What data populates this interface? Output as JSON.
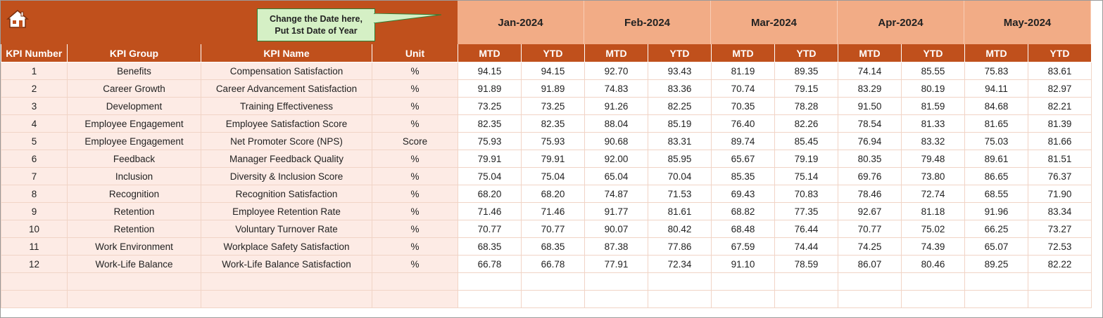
{
  "header": {
    "home_icon": "home-icon",
    "callout_line1": "Change the Date here,",
    "callout_line2": "Put 1st Date of Year",
    "months": [
      "Jan-2024",
      "Feb-2024",
      "Mar-2024",
      "Apr-2024",
      "May-2024"
    ]
  },
  "columns": {
    "kpi_number": "KPI Number",
    "kpi_group": "KPI Group",
    "kpi_name": "KPI Name",
    "unit": "Unit",
    "mtd": "MTD",
    "ytd": "YTD"
  },
  "rows": [
    {
      "num": "1",
      "group": "Benefits",
      "name": "Compensation Satisfaction",
      "unit": "%",
      "values": [
        "94.15",
        "94.15",
        "92.70",
        "93.43",
        "81.19",
        "89.35",
        "74.14",
        "85.55",
        "75.83",
        "83.61"
      ]
    },
    {
      "num": "2",
      "group": "Career Growth",
      "name": "Career Advancement Satisfaction",
      "unit": "%",
      "values": [
        "91.89",
        "91.89",
        "74.83",
        "83.36",
        "70.74",
        "79.15",
        "83.29",
        "80.19",
        "94.11",
        "82.97"
      ]
    },
    {
      "num": "3",
      "group": "Development",
      "name": "Training Effectiveness",
      "unit": "%",
      "values": [
        "73.25",
        "73.25",
        "91.26",
        "82.25",
        "70.35",
        "78.28",
        "91.50",
        "81.59",
        "84.68",
        "82.21"
      ]
    },
    {
      "num": "4",
      "group": "Employee Engagement",
      "name": "Employee Satisfaction Score",
      "unit": "%",
      "values": [
        "82.35",
        "82.35",
        "88.04",
        "85.19",
        "76.40",
        "82.26",
        "78.54",
        "81.33",
        "81.65",
        "81.39"
      ]
    },
    {
      "num": "5",
      "group": "Employee Engagement",
      "name": "Net Promoter Score (NPS)",
      "unit": "Score",
      "values": [
        "75.93",
        "75.93",
        "90.68",
        "83.31",
        "89.74",
        "85.45",
        "76.94",
        "83.32",
        "75.03",
        "81.66"
      ]
    },
    {
      "num": "6",
      "group": "Feedback",
      "name": "Manager Feedback Quality",
      "unit": "%",
      "values": [
        "79.91",
        "79.91",
        "92.00",
        "85.95",
        "65.67",
        "79.19",
        "80.35",
        "79.48",
        "89.61",
        "81.51"
      ]
    },
    {
      "num": "7",
      "group": "Inclusion",
      "name": "Diversity & Inclusion Score",
      "unit": "%",
      "values": [
        "75.04",
        "75.04",
        "65.04",
        "70.04",
        "85.35",
        "75.14",
        "69.76",
        "73.80",
        "86.65",
        "76.37"
      ]
    },
    {
      "num": "8",
      "group": "Recognition",
      "name": "Recognition Satisfaction",
      "unit": "%",
      "values": [
        "68.20",
        "68.20",
        "74.87",
        "71.53",
        "69.43",
        "70.83",
        "78.46",
        "72.74",
        "68.55",
        "71.90"
      ]
    },
    {
      "num": "9",
      "group": "Retention",
      "name": "Employee Retention Rate",
      "unit": "%",
      "values": [
        "71.46",
        "71.46",
        "91.77",
        "81.61",
        "68.82",
        "77.35",
        "92.67",
        "81.18",
        "91.96",
        "83.34"
      ]
    },
    {
      "num": "10",
      "group": "Retention",
      "name": "Voluntary Turnover Rate",
      "unit": "%",
      "values": [
        "70.77",
        "70.77",
        "90.07",
        "80.42",
        "68.48",
        "76.44",
        "70.77",
        "75.02",
        "66.25",
        "73.27"
      ]
    },
    {
      "num": "11",
      "group": "Work Environment",
      "name": "Workplace Safety Satisfaction",
      "unit": "%",
      "values": [
        "68.35",
        "68.35",
        "87.38",
        "77.86",
        "67.59",
        "74.44",
        "74.25",
        "74.39",
        "65.07",
        "72.53"
      ]
    },
    {
      "num": "12",
      "group": "Work-Life Balance",
      "name": "Work-Life Balance Satisfaction",
      "unit": "%",
      "values": [
        "66.78",
        "66.78",
        "77.91",
        "72.34",
        "91.10",
        "78.59",
        "86.07",
        "80.46",
        "89.25",
        "82.22"
      ]
    }
  ],
  "colors": {
    "header_dark": "#C0501C",
    "header_light": "#F2AC86",
    "row_left_fill": "#FDEBE5",
    "callout_fill": "#D5F0C5"
  }
}
